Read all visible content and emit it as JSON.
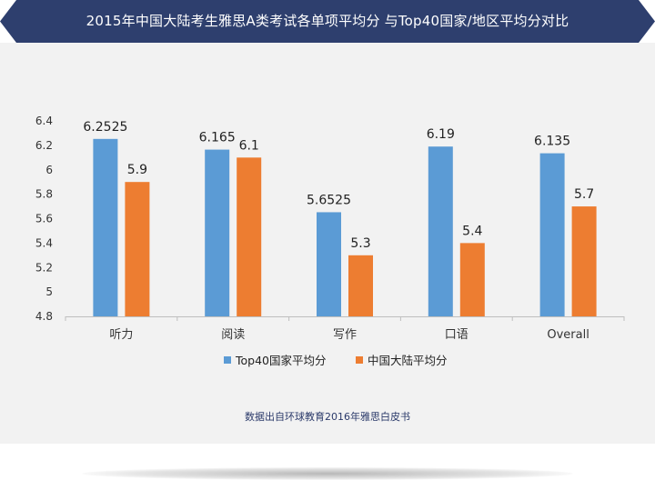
{
  "banner": {
    "color": "#2e3f6e"
  },
  "chart_data": {
    "type": "bar",
    "title": "2015年中国大陆考生雅思A类考试各单项平均分 与Top40国家/地区平均分对比",
    "categories": [
      "听力",
      "阅读",
      "写作",
      "口语",
      "Overall"
    ],
    "series": [
      {
        "name": "Top40国家平均分",
        "values": [
          6.2525,
          6.165,
          5.6525,
          6.19,
          6.135
        ],
        "labels": [
          "6.2525",
          "6.165",
          "5.6525",
          "6.19",
          "6.135"
        ],
        "color": "#5b9bd5"
      },
      {
        "name": "中国大陆平均分",
        "values": [
          5.9,
          6.1,
          5.3,
          5.4,
          5.7
        ],
        "labels": [
          "5.9",
          "6.1",
          "5.3",
          "5.4",
          "5.7"
        ],
        "color": "#ed7d31"
      }
    ],
    "y_ticks": [
      "4.8",
      "5",
      "5.2",
      "5.4",
      "5.6",
      "5.8",
      "6",
      "6.2",
      "6.4"
    ],
    "ylim": [
      4.8,
      6.4
    ],
    "grid": false,
    "legend_position": "bottom"
  },
  "source_note": "数据出自环球教育2016年雅思白皮书"
}
